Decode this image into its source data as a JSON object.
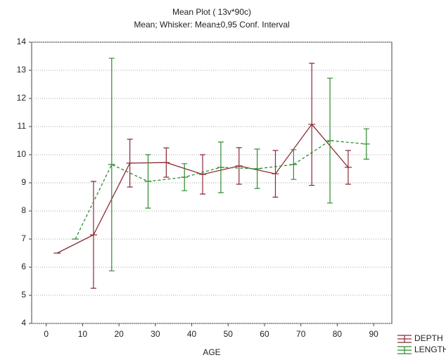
{
  "chart_data": {
    "type": "errorbar-line",
    "title": "Mean Plot ( 13v*90c)",
    "subtitle": "Mean; Whisker: Mean±0,95 Conf. Interval",
    "x_label": "AGE",
    "xlim": [
      -4,
      95
    ],
    "ylim": [
      4,
      14
    ],
    "xticks": [
      0,
      10,
      20,
      30,
      40,
      50,
      60,
      70,
      80,
      90
    ],
    "yticks": [
      4,
      5,
      6,
      7,
      8,
      9,
      10,
      11,
      12,
      13,
      14
    ],
    "grid": true,
    "legend": "bottom-right",
    "series": [
      {
        "name": "DEPTH",
        "color": "#8b2a35",
        "dashed": false,
        "x": [
          3,
          13,
          23,
          33,
          43,
          53,
          63,
          73,
          83
        ],
        "values": [
          6.5,
          7.15,
          9.7,
          9.72,
          9.3,
          9.6,
          9.32,
          11.08,
          9.55
        ],
        "errors": [
          0,
          1.9,
          0.85,
          0.52,
          0.7,
          0.65,
          0.83,
          2.17,
          0.6
        ]
      },
      {
        "name": "LENGTH",
        "color": "#2e8b2e",
        "dashed": true,
        "x": [
          8,
          18,
          28,
          38,
          48,
          58,
          68,
          78,
          88
        ],
        "values": [
          7.0,
          9.65,
          9.05,
          9.2,
          9.55,
          9.5,
          9.65,
          10.5,
          10.38
        ],
        "errors": [
          0,
          3.78,
          0.95,
          0.48,
          0.9,
          0.7,
          0.53,
          2.22,
          0.54
        ]
      }
    ]
  }
}
